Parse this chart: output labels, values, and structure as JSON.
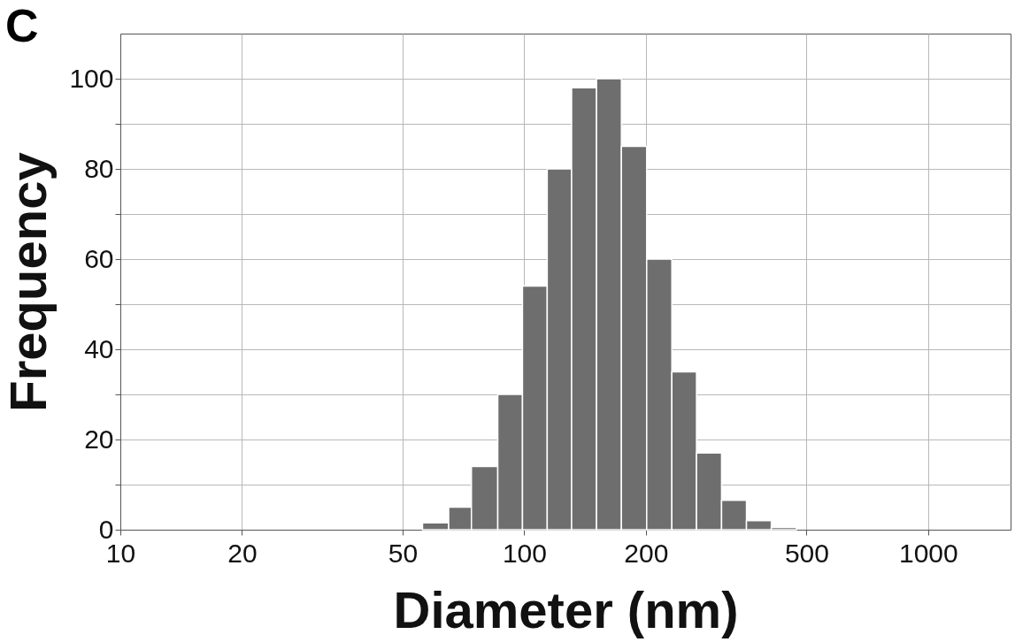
{
  "chart_data": {
    "type": "histogram",
    "title": "C",
    "xlabel": "Diameter (nm)",
    "ylabel": "Frequency",
    "bins": [
      56,
      65,
      74,
      86,
      99,
      114,
      131,
      151,
      174,
      201,
      232,
      267,
      308,
      355,
      409,
      472
    ],
    "values": [
      1.5,
      5,
      14,
      30,
      54,
      80,
      98,
      100,
      85,
      60,
      35,
      17,
      6.5,
      2,
      0.5
    ],
    "color": "#6e6e6e",
    "log": "x",
    "xlim": [
      10,
      1600
    ],
    "xticks": [
      10,
      20,
      50,
      100,
      200,
      500,
      1000
    ],
    "ylim": [
      0,
      110
    ],
    "yticks": [
      0,
      {
        "value": 10,
        "label": null
      },
      20,
      {
        "value": 30,
        "label": null
      },
      40,
      {
        "value": 50,
        "label": null
      },
      60,
      {
        "value": 70,
        "label": null
      },
      80,
      {
        "value": 90,
        "label": null
      },
      100
    ],
    "grid": true
  }
}
